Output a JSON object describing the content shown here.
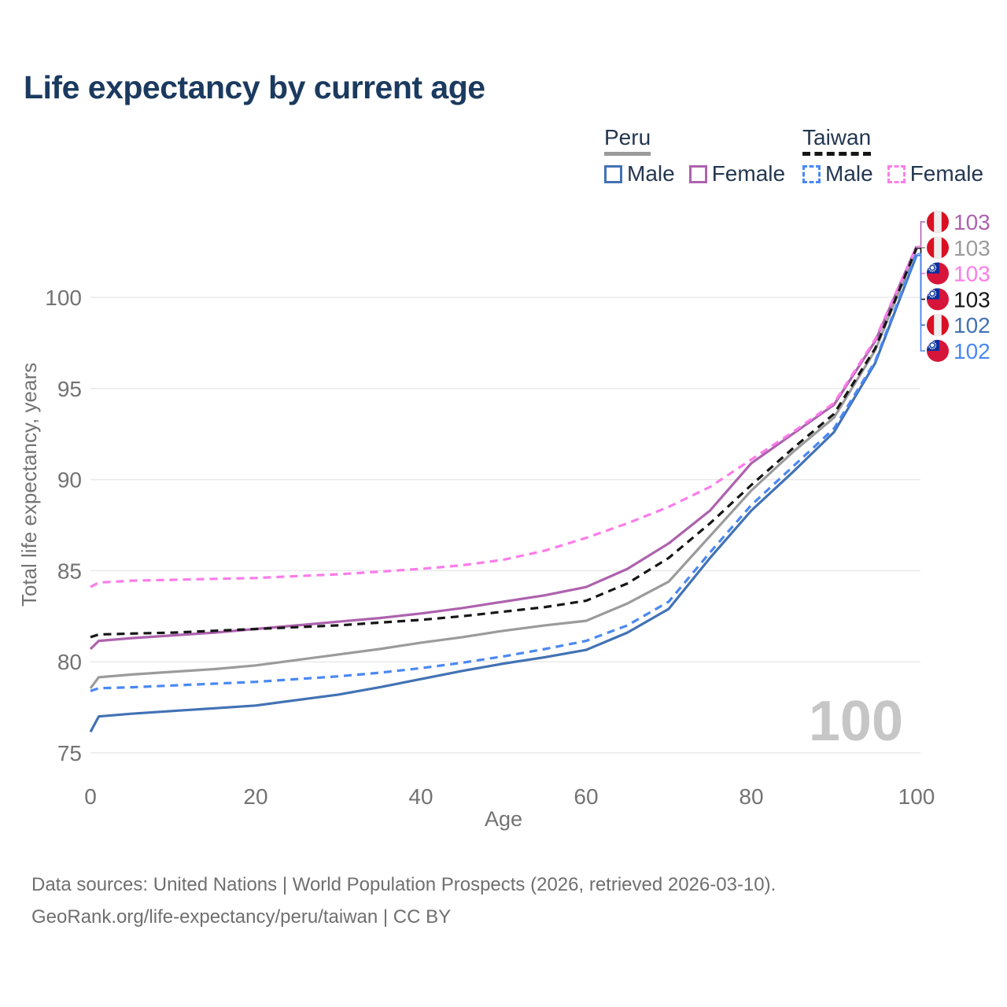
{
  "title": "Life expectancy by current age",
  "legend": {
    "peru": {
      "label": "Peru",
      "male": "Male",
      "female": "Female"
    },
    "taiwan": {
      "label": "Taiwan",
      "male": "Male",
      "female": "Female"
    }
  },
  "colors": {
    "title": "#1b3a5f",
    "legend_text": "#243750",
    "axis_text": "#737373",
    "grid": "#e9e9e9",
    "watermark": "#c6c6c6",
    "footer_text": "#6f6f6f",
    "peru_male": "#4272b4",
    "peru_female": "#ad62ad",
    "peru_total": "#9b9b9b",
    "taiwan_male": "#4a88f2",
    "taiwan_female": "#fb7ce9",
    "taiwan_total": "#161616",
    "flag_red_peru": "#d91023",
    "flag_white": "#ededed",
    "flag_red_taiwan": "#d7153a",
    "flag_blue_taiwan": "#0a2f9e"
  },
  "chart_data": {
    "type": "line",
    "title": "Life expectancy by current age",
    "xlabel": "Age",
    "ylabel": "Total life expectancy, years",
    "xlim": [
      0,
      100
    ],
    "ylim": [
      74.5,
      104
    ],
    "xticks": [
      0,
      20,
      40,
      60,
      80,
      100
    ],
    "yticks": [
      75,
      80,
      85,
      90,
      95,
      100
    ],
    "grid": "horizontal",
    "legend_position": "top-right",
    "x": [
      0,
      1,
      5,
      10,
      15,
      20,
      25,
      30,
      35,
      40,
      45,
      50,
      55,
      60,
      65,
      70,
      75,
      80,
      85,
      90,
      95,
      100
    ],
    "series": [
      {
        "key": "peru_female",
        "name": "Peru Female",
        "country": "Peru",
        "sex": "Female",
        "style": "solid",
        "values": [
          80.7,
          81.15,
          81.3,
          81.45,
          81.6,
          81.8,
          82.0,
          82.2,
          82.4,
          82.65,
          82.95,
          83.3,
          83.65,
          84.1,
          85.1,
          86.5,
          88.3,
          90.9,
          92.5,
          94.1,
          97.6,
          102.8
        ]
      },
      {
        "key": "peru_total",
        "name": "Peru Both sexes",
        "country": "Peru",
        "sex": "Both",
        "style": "solid",
        "values": [
          78.55,
          79.15,
          79.3,
          79.45,
          79.6,
          79.8,
          80.1,
          80.4,
          80.7,
          81.05,
          81.35,
          81.7,
          82.0,
          82.25,
          83.2,
          84.4,
          86.9,
          89.4,
          91.5,
          93.4,
          97.1,
          102.7
        ]
      },
      {
        "key": "peru_male",
        "name": "Peru Male",
        "country": "Peru",
        "sex": "Male",
        "style": "solid",
        "values": [
          76.15,
          77.0,
          77.15,
          77.3,
          77.45,
          77.6,
          77.9,
          78.2,
          78.6,
          79.05,
          79.5,
          79.9,
          80.25,
          80.65,
          81.6,
          82.9,
          85.7,
          88.3,
          90.4,
          92.6,
          96.4,
          102.3
        ]
      },
      {
        "key": "taiwan_female",
        "name": "Taiwan Female",
        "country": "Taiwan",
        "sex": "Female",
        "style": "dashed",
        "values": [
          84.1,
          84.35,
          84.45,
          84.5,
          84.55,
          84.6,
          84.7,
          84.8,
          84.95,
          85.1,
          85.3,
          85.6,
          86.1,
          86.8,
          87.6,
          88.5,
          89.6,
          91.1,
          92.6,
          94.2,
          97.7,
          102.8
        ]
      },
      {
        "key": "taiwan_total",
        "name": "Taiwan Both sexes",
        "country": "Taiwan",
        "sex": "Both",
        "style": "dashed",
        "values": [
          81.35,
          81.5,
          81.55,
          81.6,
          81.7,
          81.8,
          81.9,
          82.0,
          82.15,
          82.3,
          82.5,
          82.75,
          83.0,
          83.35,
          84.3,
          85.7,
          87.6,
          89.7,
          91.7,
          93.6,
          97.2,
          102.7
        ]
      },
      {
        "key": "taiwan_male",
        "name": "Taiwan Male",
        "country": "Taiwan",
        "sex": "Male",
        "style": "dashed",
        "values": [
          78.4,
          78.55,
          78.6,
          78.7,
          78.8,
          78.9,
          79.05,
          79.2,
          79.4,
          79.65,
          79.95,
          80.3,
          80.7,
          81.15,
          82.0,
          83.3,
          86.0,
          88.6,
          90.7,
          92.8,
          96.5,
          102.4
        ]
      }
    ],
    "callouts": [
      {
        "flag": "peru",
        "value": "103",
        "series_key": "peru_female"
      },
      {
        "flag": "peru",
        "value": "103",
        "series_key": "peru_total"
      },
      {
        "flag": "taiwan",
        "value": "103",
        "series_key": "taiwan_female"
      },
      {
        "flag": "taiwan",
        "value": "103",
        "series_key": "taiwan_total"
      },
      {
        "flag": "peru",
        "value": "102",
        "series_key": "peru_male"
      },
      {
        "flag": "taiwan",
        "value": "102",
        "series_key": "taiwan_male"
      }
    ],
    "age_indicator": "100"
  },
  "footer": {
    "line1": "Data sources: United Nations | World Population Prospects (2026, retrieved 2026-03-10).",
    "line2": "GeoRank.org/life-expectancy/peru/taiwan | CC BY"
  }
}
